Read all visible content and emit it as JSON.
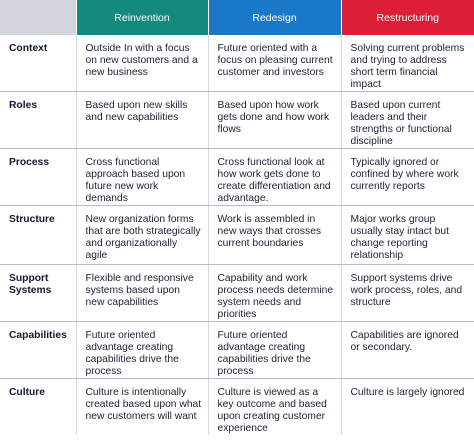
{
  "header": {
    "corner": "",
    "col1": "Reinvention",
    "col2": "Redesign",
    "col3": "Restructuring"
  },
  "rows": [
    {
      "label": "Context",
      "reinvention": "Outside In with a focus on new customers and a new business",
      "redesign": "Future oriented with a focus on pleasing current customer and investors",
      "restructuring": "Solving current problems and trying to address short term financial impact"
    },
    {
      "label": "Roles",
      "reinvention": "Based upon new skills and new capabilities",
      "redesign": "Based upon how work gets done and how work flows",
      "restructuring": "Based upon current leaders and their strengths or functional discipline"
    },
    {
      "label": "Process",
      "reinvention": "Cross functional approach based upon future new work demands",
      "redesign": "Cross functional look at how work gets done to create differentiation and advantage.",
      "restructuring": "Typically ignored or confined by where work currently reports"
    },
    {
      "label": "Structure",
      "reinvention": "New organization forms that are both strategically and organizationally agile",
      "redesign": "Work is assembled in new ways that crosses current boundaries",
      "restructuring": "Major works group usually stay intact but change reporting relationship"
    },
    {
      "label": "Support Systems",
      "reinvention": "Flexible and responsive systems based upon new capabilities",
      "redesign": "Capability and work process needs determine system needs and priorities",
      "restructuring": "Support systems drive work process, roles, and structure"
    },
    {
      "label": "Capabilities",
      "reinvention": "Future oriented advantage creating capabilities drive the process",
      "redesign": "Future oriented advantage creating capabilities drive the process",
      "restructuring": "Capabilities are ignored or secondary."
    },
    {
      "label": "Culture",
      "reinvention": "Culture is intentionally created based upon what new customers will want",
      "redesign": "Culture is viewed as a key outcome and based upon creating customer experience",
      "restructuring": "Culture is largely ignored"
    }
  ],
  "colors": {
    "reinvention": "#14897e",
    "redesign": "#1a78c9",
    "restructuring": "#dc1f36",
    "corner": "#d3d5de"
  }
}
